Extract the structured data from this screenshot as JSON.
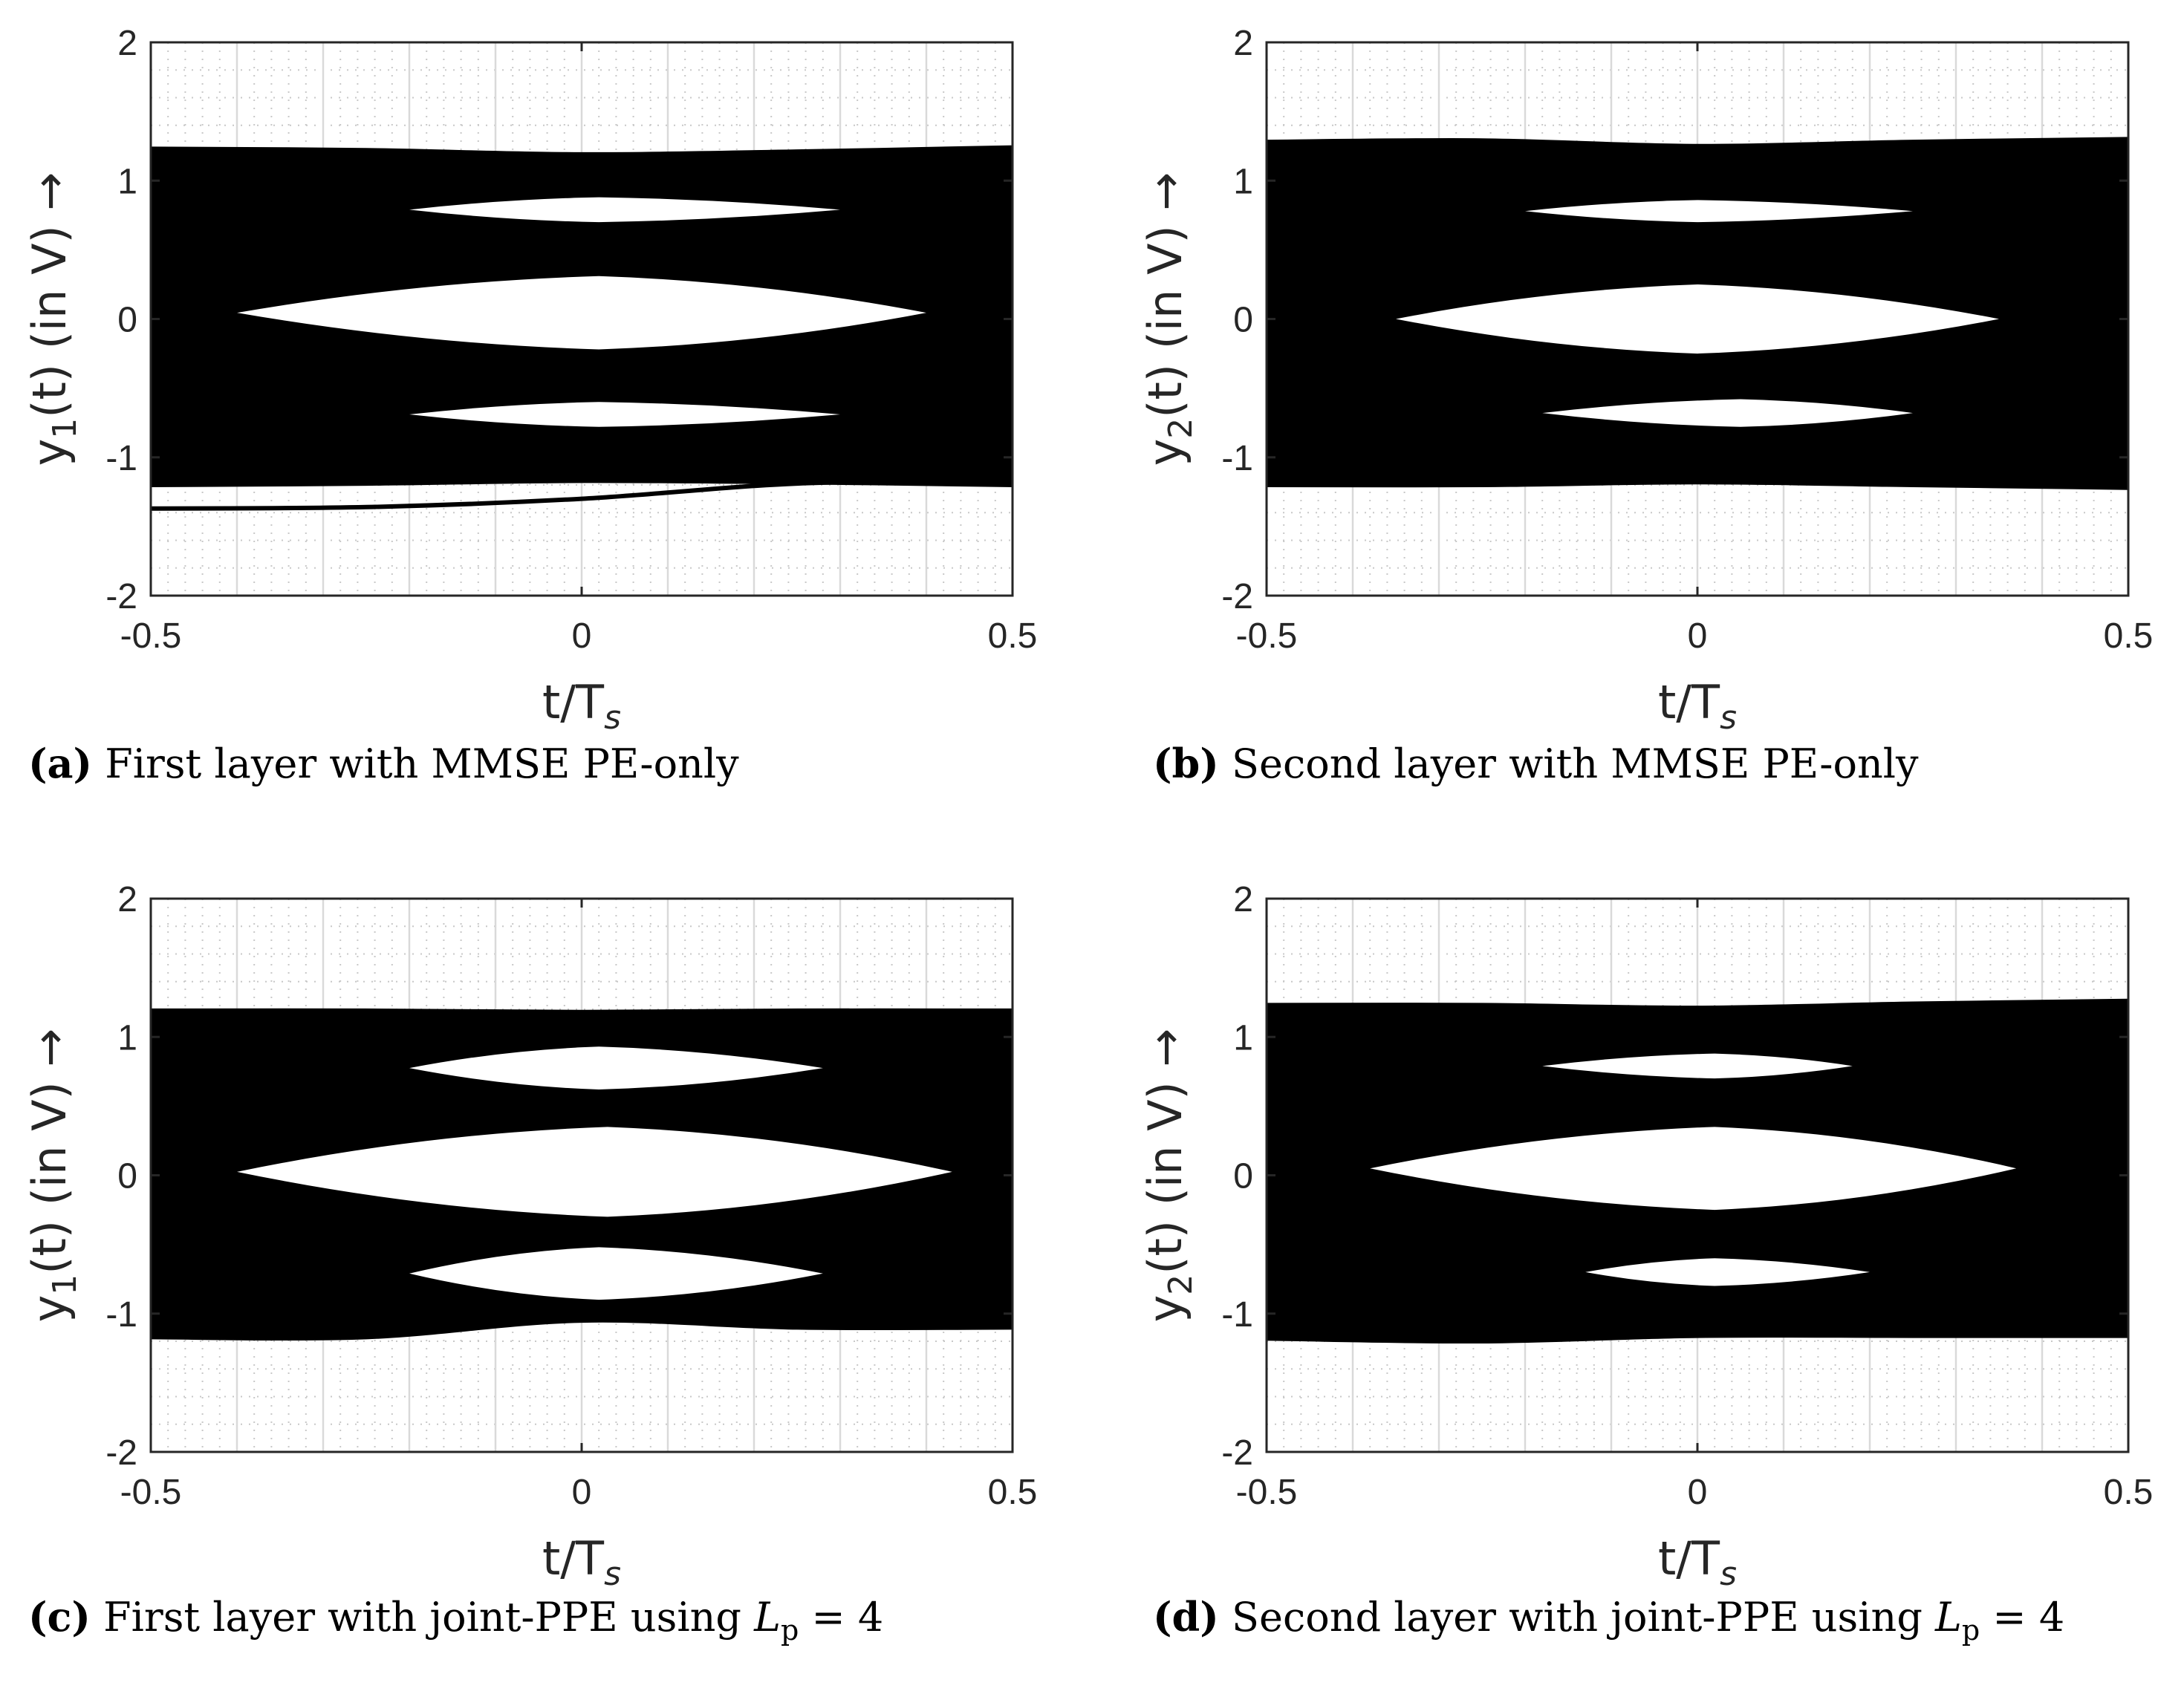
{
  "chart_data": [
    {
      "type": "line",
      "panel": "a",
      "caption_label": "(a)",
      "caption_text": "First layer with MMSE PE-only",
      "xlabel_main": "t/T",
      "xlabel_sub": "s",
      "ylabel_main": "y",
      "ylabel_sub": "1",
      "ylabel_tail": "(t) (in V) →",
      "xlim": [
        -0.5,
        0.5
      ],
      "ylim": [
        -2,
        2
      ],
      "xticks": [
        "-0.5",
        "0",
        "0.5"
      ],
      "yticks": [
        "-2",
        "-1",
        "0",
        "1",
        "2"
      ],
      "grid": true,
      "minor_grid": true,
      "series": [
        {
          "x": [
            -0.5,
            -0.25,
            0,
            0.25,
            0.5
          ],
          "y": [
            1.23,
            1.22,
            1.19,
            1.21,
            1.24
          ]
        },
        {
          "x": [
            -0.5,
            -0.25,
            0,
            0.25,
            0.5
          ],
          "y": [
            -1.2,
            -1.19,
            -1.17,
            -1.18,
            -1.2
          ]
        },
        {
          "x": [
            -0.5,
            -0.25,
            0,
            0.25,
            0.5
          ],
          "y": [
            -1.37,
            -1.36,
            -1.3,
            -1.19,
            -1.17
          ]
        }
      ],
      "eyes": [
        {
          "x": [
            -0.2,
            0.02,
            0.3
          ],
          "y_top": 0.88,
          "y_bottom": 0.7
        },
        {
          "x": [
            -0.4,
            0.02,
            0.4
          ],
          "y_top": 0.31,
          "y_bottom": -0.22
        },
        {
          "x": [
            -0.2,
            0.02,
            0.3
          ],
          "y_top": -0.6,
          "y_bottom": -0.78
        }
      ]
    },
    {
      "type": "line",
      "panel": "b",
      "caption_label": "(b)",
      "caption_text": "Second layer with MMSE PE-only",
      "xlabel_main": "t/T",
      "xlabel_sub": "s",
      "ylabel_main": "y",
      "ylabel_sub": "2",
      "ylabel_tail": "(t) (in V) →",
      "xlim": [
        -0.5,
        0.5
      ],
      "ylim": [
        -2,
        2
      ],
      "xticks": [
        "-0.5",
        "0",
        "0.5"
      ],
      "yticks": [
        "-2",
        "-1",
        "0",
        "1",
        "2"
      ],
      "grid": true,
      "minor_grid": true,
      "series": [
        {
          "x": [
            -0.5,
            -0.25,
            0,
            0.25,
            0.5
          ],
          "y": [
            1.28,
            1.29,
            1.25,
            1.28,
            1.3
          ]
        },
        {
          "x": [
            -0.5,
            -0.25,
            0,
            0.25,
            0.5
          ],
          "y": [
            -1.2,
            -1.2,
            -1.18,
            -1.2,
            -1.22
          ]
        }
      ],
      "eyes": [
        {
          "x": [
            -0.2,
            0.0,
            0.25
          ],
          "y_top": 0.86,
          "y_bottom": 0.7
        },
        {
          "x": [
            -0.35,
            0.0,
            0.35
          ],
          "y_top": 0.25,
          "y_bottom": -0.25
        },
        {
          "x": [
            -0.18,
            0.05,
            0.25
          ],
          "y_top": -0.58,
          "y_bottom": -0.78
        }
      ]
    },
    {
      "type": "line",
      "panel": "c",
      "caption_label": "(c)",
      "caption_text": "First layer with joint-PPE using",
      "caption_math_main": "L",
      "caption_math_sub": "p",
      "caption_math_tail": " = 4",
      "xlabel_main": "t/T",
      "xlabel_sub": "s",
      "ylabel_main": "y",
      "ylabel_sub": "1",
      "ylabel_tail": "(t) (in V) →",
      "xlim": [
        -0.5,
        0.5
      ],
      "ylim": [
        -2,
        2
      ],
      "xticks": [
        "-0.5",
        "0",
        "0.5"
      ],
      "yticks": [
        "-2",
        "-1",
        "0",
        "1",
        "2"
      ],
      "grid": true,
      "minor_grid": true,
      "series": [
        {
          "x": [
            -0.5,
            -0.25,
            0,
            0.25,
            0.5
          ],
          "y": [
            1.19,
            1.19,
            1.18,
            1.19,
            1.19
          ]
        },
        {
          "x": [
            -0.5,
            -0.25,
            0,
            0.25,
            0.5
          ],
          "y": [
            -1.17,
            -1.17,
            -1.05,
            -1.1,
            -1.1
          ]
        }
      ],
      "eyes": [
        {
          "x": [
            -0.2,
            0.02,
            0.28
          ],
          "y_top": 0.93,
          "y_bottom": 0.62
        },
        {
          "x": [
            -0.4,
            0.03,
            0.43
          ],
          "y_top": 0.35,
          "y_bottom": -0.3
        },
        {
          "x": [
            -0.2,
            0.02,
            0.28
          ],
          "y_top": -0.52,
          "y_bottom": -0.9
        }
      ]
    },
    {
      "type": "line",
      "panel": "d",
      "caption_label": "(d)",
      "caption_text": "Second layer with joint-PPE using",
      "caption_math_main": "L",
      "caption_math_sub": "p",
      "caption_math_tail": " = 4",
      "xlabel_main": "t/T",
      "xlabel_sub": "s",
      "ylabel_main": "y",
      "ylabel_sub": "2",
      "ylabel_tail": "(t) (in V) →",
      "xlim": [
        -0.5,
        0.5
      ],
      "ylim": [
        -2,
        2
      ],
      "xticks": [
        "-0.5",
        "0",
        "0.5"
      ],
      "yticks": [
        "-2",
        "-1",
        "0",
        "1",
        "2"
      ],
      "grid": true,
      "minor_grid": true,
      "series": [
        {
          "x": [
            -0.5,
            -0.25,
            0,
            0.25,
            0.5
          ],
          "y": [
            1.23,
            1.23,
            1.21,
            1.24,
            1.26
          ]
        },
        {
          "x": [
            -0.5,
            -0.25,
            0,
            0.25,
            0.5
          ],
          "y": [
            -1.18,
            -1.2,
            -1.16,
            -1.16,
            -1.16
          ]
        }
      ],
      "eyes": [
        {
          "x": [
            -0.18,
            0.02,
            0.18
          ],
          "y_top": 0.88,
          "y_bottom": 0.7
        },
        {
          "x": [
            -0.38,
            0.02,
            0.37
          ],
          "y_top": 0.35,
          "y_bottom": -0.25
        },
        {
          "x": [
            -0.13,
            0.02,
            0.2
          ],
          "y_top": -0.6,
          "y_bottom": -0.8
        }
      ]
    }
  ]
}
